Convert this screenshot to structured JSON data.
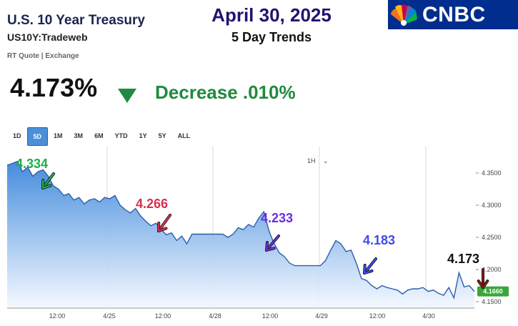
{
  "header": {
    "title": "U.S. 10 Year Treasury",
    "symbol": "US10Y:Tradeweb",
    "quote_source": "RT Quote | Exchange",
    "date": "April 30, 2025",
    "subtitle": "5 Day Trends",
    "logo_text": "CNBC"
  },
  "quote": {
    "price": "4.173%",
    "change_text": "Decrease  .010%",
    "direction_icon": "down-triangle-icon",
    "change_color": "#1f8a3f"
  },
  "range_tabs": [
    {
      "label": "1D",
      "active": false
    },
    {
      "label": "5D",
      "active": true
    },
    {
      "label": "1M",
      "active": false
    },
    {
      "label": "3M",
      "active": false
    },
    {
      "label": "6M",
      "active": false
    },
    {
      "label": "YTD",
      "active": false
    },
    {
      "label": "1Y",
      "active": false
    },
    {
      "label": "5Y",
      "active": false
    },
    {
      "label": "ALL",
      "active": false
    }
  ],
  "interval_selector": "1H",
  "chart_data": {
    "type": "area",
    "x_ticks": [
      "12:00",
      "4/25",
      "12:00",
      "4/28",
      "12:00",
      "4/29",
      "12:00",
      "4/30"
    ],
    "y_ticks": [
      "4.3500",
      "4.3000",
      "4.2500",
      "4.2000",
      "4.1500"
    ],
    "ylim": [
      4.14,
      4.38
    ],
    "current_value_label": "4.1660",
    "values": [
      4.362,
      4.365,
      4.368,
      4.352,
      4.359,
      4.345,
      4.352,
      4.355,
      4.345,
      4.33,
      4.325,
      4.315,
      4.318,
      4.308,
      4.312,
      4.302,
      4.308,
      4.31,
      4.305,
      4.312,
      4.31,
      4.315,
      4.3,
      4.293,
      4.288,
      4.295,
      4.283,
      4.275,
      4.268,
      4.272,
      4.262,
      4.254,
      4.257,
      4.245,
      4.252,
      4.24,
      4.255,
      4.255,
      4.255,
      4.255,
      4.255,
      4.255,
      4.255,
      4.25,
      4.255,
      4.265,
      4.262,
      4.27,
      4.266,
      4.28,
      4.29,
      4.26,
      4.24,
      4.226,
      4.22,
      4.21,
      4.206,
      4.206,
      4.206,
      4.206,
      4.206,
      4.206,
      4.214,
      4.23,
      4.245,
      4.24,
      4.228,
      4.23,
      4.21,
      4.186,
      4.183,
      4.175,
      4.17,
      4.175,
      4.172,
      4.17,
      4.168,
      4.162,
      4.168,
      4.17,
      4.17,
      4.172,
      4.166,
      4.168,
      4.163,
      4.16,
      4.172,
      4.156,
      4.195,
      4.173,
      4.175,
      4.166
    ],
    "annotations": [
      {
        "label": "4.334",
        "color": "#1fae4f"
      },
      {
        "label": "4.266",
        "color": "#d6304f"
      },
      {
        "label": "4.233",
        "color": "#6a2fe0"
      },
      {
        "label": "4.183",
        "color": "#3f4be6"
      },
      {
        "label": "4.173",
        "color": "#111111"
      }
    ],
    "line_color": "#2b5fa8",
    "fill_top_color": "#3b86db",
    "fill_bottom_color": "#f3f8ff",
    "current_badge_color": "#3aa53a"
  }
}
